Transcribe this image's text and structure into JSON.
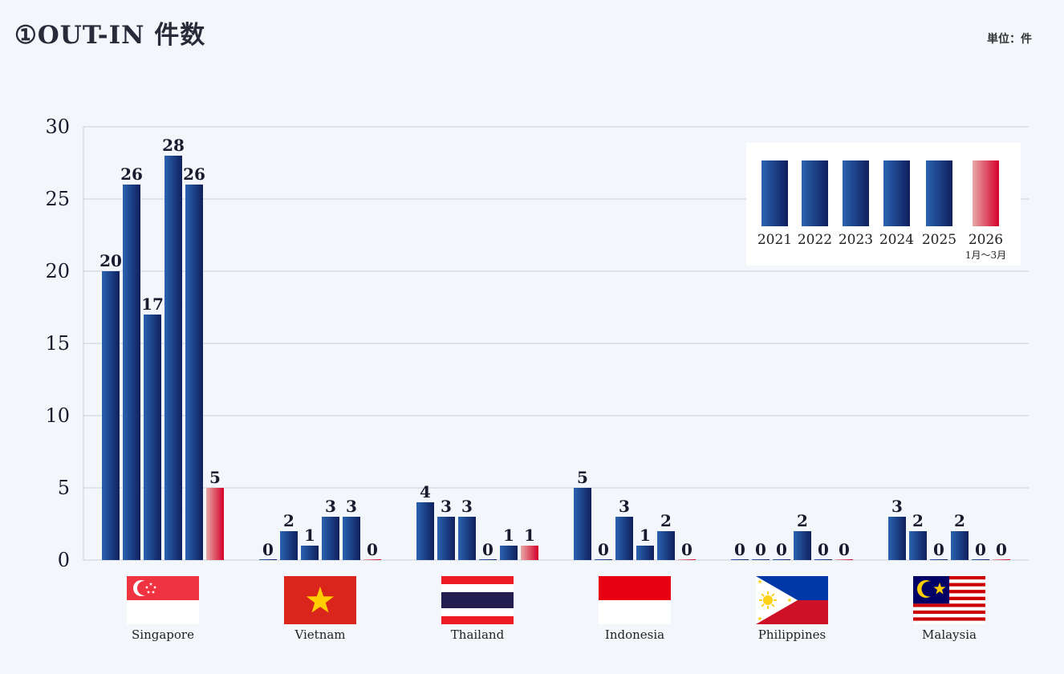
{
  "title": "①OUT-IN 件数",
  "unit_label": "単位：件",
  "chart_data": {
    "type": "bar",
    "title": "①OUT-IN 件数",
    "categories": [
      "Singapore",
      "Vietnam",
      "Thailand",
      "Indonesia",
      "Philippines",
      "Malaysia"
    ],
    "series": [
      {
        "name": "2021",
        "values": [
          20,
          0,
          4,
          5,
          0,
          3
        ]
      },
      {
        "name": "2022",
        "values": [
          26,
          2,
          3,
          0,
          0,
          2
        ]
      },
      {
        "name": "2023",
        "values": [
          17,
          1,
          3,
          3,
          0,
          0
        ]
      },
      {
        "name": "2024",
        "values": [
          28,
          3,
          0,
          1,
          2,
          2
        ]
      },
      {
        "name": "2025",
        "values": [
          26,
          3,
          1,
          2,
          0,
          0
        ]
      },
      {
        "name": "2026",
        "sublabel": "1月〜3月",
        "values": [
          5,
          0,
          1,
          0,
          0,
          0
        ]
      }
    ],
    "ylim": [
      0,
      30
    ],
    "yticks": [
      0,
      5,
      10,
      15,
      20,
      25,
      30
    ],
    "grid": true,
    "legend_position": "top-right",
    "colors": {
      "bar_dark": "#0f1f5e",
      "bar_light": "#2a63b0",
      "highlight_dark": "#d4002a",
      "highlight_light": "#e8aaa8",
      "grid": "#c9cfd8",
      "axis_text": "#1a1a2e"
    },
    "flags": [
      "singapore-flag",
      "vietnam-flag",
      "thailand-flag",
      "indonesia-flag",
      "philippines-flag",
      "malaysia-flag"
    ]
  }
}
